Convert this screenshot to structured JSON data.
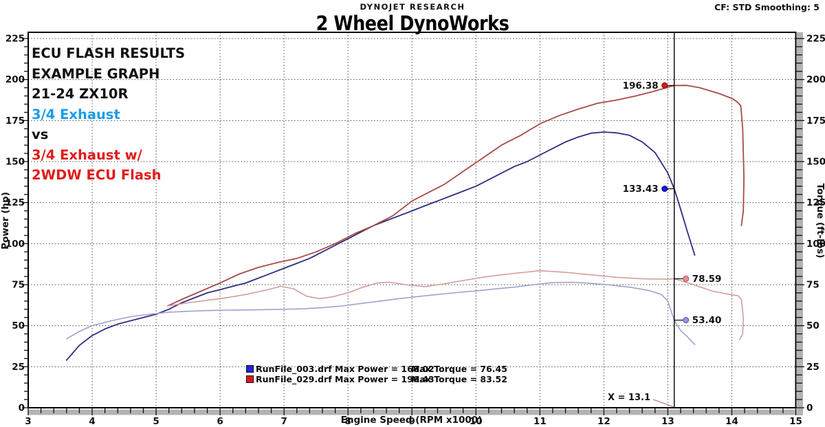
{
  "header": {
    "brand": "DYNOJET RESEARCH",
    "cf": "CF: STD  Smoothing: 5",
    "title": "2 Wheel DynoWorks"
  },
  "annotation_lines": [
    {
      "text": "ECU FLASH RESULTS",
      "color": "#111111"
    },
    {
      "text": "EXAMPLE GRAPH",
      "color": "#111111"
    },
    {
      "text": "21-24 ZX10R",
      "color": "#111111"
    },
    {
      "text": "3/4 Exhaust",
      "color": "#1b9ce8"
    },
    {
      "text": "vs",
      "color": "#111111"
    },
    {
      "text": "3/4 Exhaust w/",
      "color": "#e11b1b"
    },
    {
      "text": "2WDW ECU Flash",
      "color": "#e11b1b"
    }
  ],
  "legend": [
    {
      "marker_color": "#2222dd",
      "left": "RunFile_003.drf Max Power = 168.02",
      "right": "Max Torque = 76.45"
    },
    {
      "marker_color": "#dd1717",
      "left": "RunFile_029.drf Max Power = 196.43",
      "right": "Max Torque = 83.52"
    }
  ],
  "cursor": {
    "rpm": 13.1,
    "label": "X = 13.1"
  },
  "markers": [
    {
      "label": "196.38",
      "rpm": 13.1,
      "value": 196.38,
      "side": "left",
      "fill": "#e81414",
      "edge": "#7a0e0e",
      "name": "max-power-marker-red"
    },
    {
      "label": "133.43",
      "rpm": 13.1,
      "value": 133.43,
      "side": "left",
      "fill": "#1414e8",
      "edge": "#0e0e7a",
      "name": "power-marker-blue"
    },
    {
      "label": "78.59",
      "rpm": 13.1,
      "value": 78.59,
      "side": "right",
      "fill": "#ef8d96",
      "edge": "#a05058",
      "name": "torque-marker-red"
    },
    {
      "label": "53.40",
      "rpm": 13.1,
      "value": 53.4,
      "side": "right",
      "fill": "#8d96ef",
      "edge": "#5058a0",
      "name": "torque-marker-blue"
    }
  ],
  "chart_data": {
    "type": "line",
    "title": "2 Wheel DynoWorks",
    "xlabel": "Engine Speed (RPM x1000)",
    "ylabel_left": "Power (hp)",
    "ylabel_right": "Torque (ft-lbs)",
    "x_axis": {
      "min": 3,
      "max": 15,
      "major_step": 1,
      "minor_step": 0.2,
      "gridlines": [
        4,
        5,
        6,
        7,
        8,
        9,
        10,
        11,
        12,
        13,
        14
      ]
    },
    "y_axis": {
      "min": 0,
      "max": 225,
      "major_step": 25,
      "minor_step": 5,
      "gridlines": [
        25,
        50,
        75,
        100,
        125,
        150,
        175,
        200,
        225
      ]
    },
    "grid": "dotted",
    "legend_position": "bottom-center",
    "series": [
      {
        "name": "RunFile_003.drf Power (hp)",
        "color": "#2d2d80",
        "width": 1.8,
        "points": [
          [
            3.6,
            29
          ],
          [
            3.8,
            38
          ],
          [
            4.0,
            44
          ],
          [
            4.2,
            48
          ],
          [
            4.4,
            51
          ],
          [
            4.6,
            53
          ],
          [
            4.8,
            55
          ],
          [
            5.0,
            57
          ],
          [
            5.2,
            60
          ],
          [
            5.4,
            64
          ],
          [
            5.6,
            67
          ],
          [
            5.8,
            70
          ],
          [
            6.0,
            72
          ],
          [
            6.2,
            74
          ],
          [
            6.4,
            76
          ],
          [
            6.6,
            79
          ],
          [
            6.8,
            82
          ],
          [
            7.0,
            85
          ],
          [
            7.2,
            88
          ],
          [
            7.4,
            91
          ],
          [
            7.6,
            95
          ],
          [
            7.8,
            99
          ],
          [
            8.0,
            103
          ],
          [
            8.2,
            107
          ],
          [
            8.4,
            111
          ],
          [
            8.6,
            114
          ],
          [
            8.8,
            117
          ],
          [
            9.0,
            120
          ],
          [
            9.2,
            123
          ],
          [
            9.4,
            126
          ],
          [
            9.6,
            129
          ],
          [
            9.8,
            132
          ],
          [
            10.0,
            135
          ],
          [
            10.2,
            139
          ],
          [
            10.4,
            143
          ],
          [
            10.6,
            147
          ],
          [
            10.8,
            150
          ],
          [
            11.0,
            154
          ],
          [
            11.2,
            158
          ],
          [
            11.4,
            162
          ],
          [
            11.6,
            165
          ],
          [
            11.8,
            167.3
          ],
          [
            12.0,
            168
          ],
          [
            12.2,
            167.5
          ],
          [
            12.4,
            166
          ],
          [
            12.6,
            162
          ],
          [
            12.8,
            155.5
          ],
          [
            13.0,
            143
          ],
          [
            13.1,
            133.43
          ],
          [
            13.2,
            121
          ],
          [
            13.3,
            108
          ],
          [
            13.38,
            98
          ],
          [
            13.42,
            93
          ]
        ]
      },
      {
        "name": "RunFile_029.drf Power (hp)",
        "color": "#a64b46",
        "width": 1.8,
        "points": [
          [
            5.18,
            62
          ],
          [
            5.4,
            66
          ],
          [
            5.7,
            71
          ],
          [
            6.0,
            76
          ],
          [
            6.3,
            81.5
          ],
          [
            6.6,
            85.5
          ],
          [
            6.9,
            88.5
          ],
          [
            7.2,
            91
          ],
          [
            7.5,
            95
          ],
          [
            7.8,
            100
          ],
          [
            8.1,
            106
          ],
          [
            8.4,
            111
          ],
          [
            8.7,
            117
          ],
          [
            9.0,
            126
          ],
          [
            9.2,
            130
          ],
          [
            9.5,
            136
          ],
          [
            9.8,
            144
          ],
          [
            10.1,
            152
          ],
          [
            10.4,
            160
          ],
          [
            10.7,
            166
          ],
          [
            11.0,
            173
          ],
          [
            11.3,
            178
          ],
          [
            11.6,
            182
          ],
          [
            11.9,
            185.5
          ],
          [
            12.2,
            187.5
          ],
          [
            12.5,
            190
          ],
          [
            12.8,
            193
          ],
          [
            13.0,
            195.3
          ],
          [
            13.1,
            196.38
          ],
          [
            13.3,
            196.43
          ],
          [
            13.5,
            195
          ],
          [
            13.8,
            191.5
          ],
          [
            14.0,
            188.5
          ],
          [
            14.08,
            186.5
          ],
          [
            14.14,
            184
          ],
          [
            14.17,
            170
          ],
          [
            14.19,
            140
          ],
          [
            14.18,
            120
          ],
          [
            14.15,
            111
          ]
        ]
      },
      {
        "name": "RunFile_003.drf Torque (ft-lbs)",
        "color": "#a0a0cf",
        "width": 1.6,
        "points": [
          [
            3.6,
            42
          ],
          [
            3.8,
            46.5
          ],
          [
            4.0,
            50
          ],
          [
            4.3,
            53
          ],
          [
            4.6,
            55.5
          ],
          [
            4.9,
            57
          ],
          [
            5.2,
            58.2
          ],
          [
            5.5,
            58.8
          ],
          [
            5.8,
            59.2
          ],
          [
            6.1,
            59.5
          ],
          [
            6.4,
            59.6
          ],
          [
            6.7,
            59.8
          ],
          [
            7.0,
            60
          ],
          [
            7.3,
            60.3
          ],
          [
            7.6,
            61
          ],
          [
            7.9,
            62
          ],
          [
            8.2,
            63.5
          ],
          [
            8.5,
            65
          ],
          [
            8.8,
            66.5
          ],
          [
            9.1,
            67.8
          ],
          [
            9.4,
            69
          ],
          [
            9.7,
            70.2
          ],
          [
            10.0,
            71.2
          ],
          [
            10.3,
            72.4
          ],
          [
            10.6,
            73.5
          ],
          [
            10.9,
            75
          ],
          [
            11.2,
            76.2
          ],
          [
            11.5,
            76.45
          ],
          [
            11.8,
            75.8
          ],
          [
            12.1,
            74.8
          ],
          [
            12.4,
            73.5
          ],
          [
            12.7,
            71.5
          ],
          [
            12.9,
            69
          ],
          [
            13.0,
            65
          ],
          [
            13.05,
            59
          ],
          [
            13.1,
            53.4
          ],
          [
            13.2,
            47
          ],
          [
            13.3,
            43.5
          ],
          [
            13.42,
            38.5
          ]
        ]
      },
      {
        "name": "RunFile_029.drf Torque (ft-lbs)",
        "color": "#d79c9c",
        "width": 1.6,
        "points": [
          [
            5.18,
            62
          ],
          [
            5.5,
            64
          ],
          [
            5.8,
            65.5
          ],
          [
            6.1,
            67
          ],
          [
            6.4,
            69
          ],
          [
            6.7,
            71.5
          ],
          [
            6.95,
            74
          ],
          [
            7.15,
            72.5
          ],
          [
            7.35,
            68
          ],
          [
            7.55,
            66.5
          ],
          [
            7.75,
            67.5
          ],
          [
            8.0,
            70
          ],
          [
            8.2,
            73
          ],
          [
            8.45,
            76
          ],
          [
            8.65,
            76.5
          ],
          [
            8.9,
            75
          ],
          [
            9.2,
            73.8
          ],
          [
            9.5,
            75.5
          ],
          [
            9.8,
            77.5
          ],
          [
            10.1,
            79.5
          ],
          [
            10.4,
            81
          ],
          [
            10.7,
            82.3
          ],
          [
            11.0,
            83.52
          ],
          [
            11.4,
            82.5
          ],
          [
            11.8,
            81
          ],
          [
            12.2,
            79.5
          ],
          [
            12.6,
            78.6
          ],
          [
            13.0,
            78.3
          ],
          [
            13.1,
            78.59
          ],
          [
            13.4,
            75
          ],
          [
            13.7,
            71
          ],
          [
            14.0,
            68.8
          ],
          [
            14.1,
            68.2
          ],
          [
            14.15,
            66
          ],
          [
            14.18,
            55
          ],
          [
            14.17,
            45
          ],
          [
            14.12,
            41.5
          ]
        ]
      }
    ]
  }
}
